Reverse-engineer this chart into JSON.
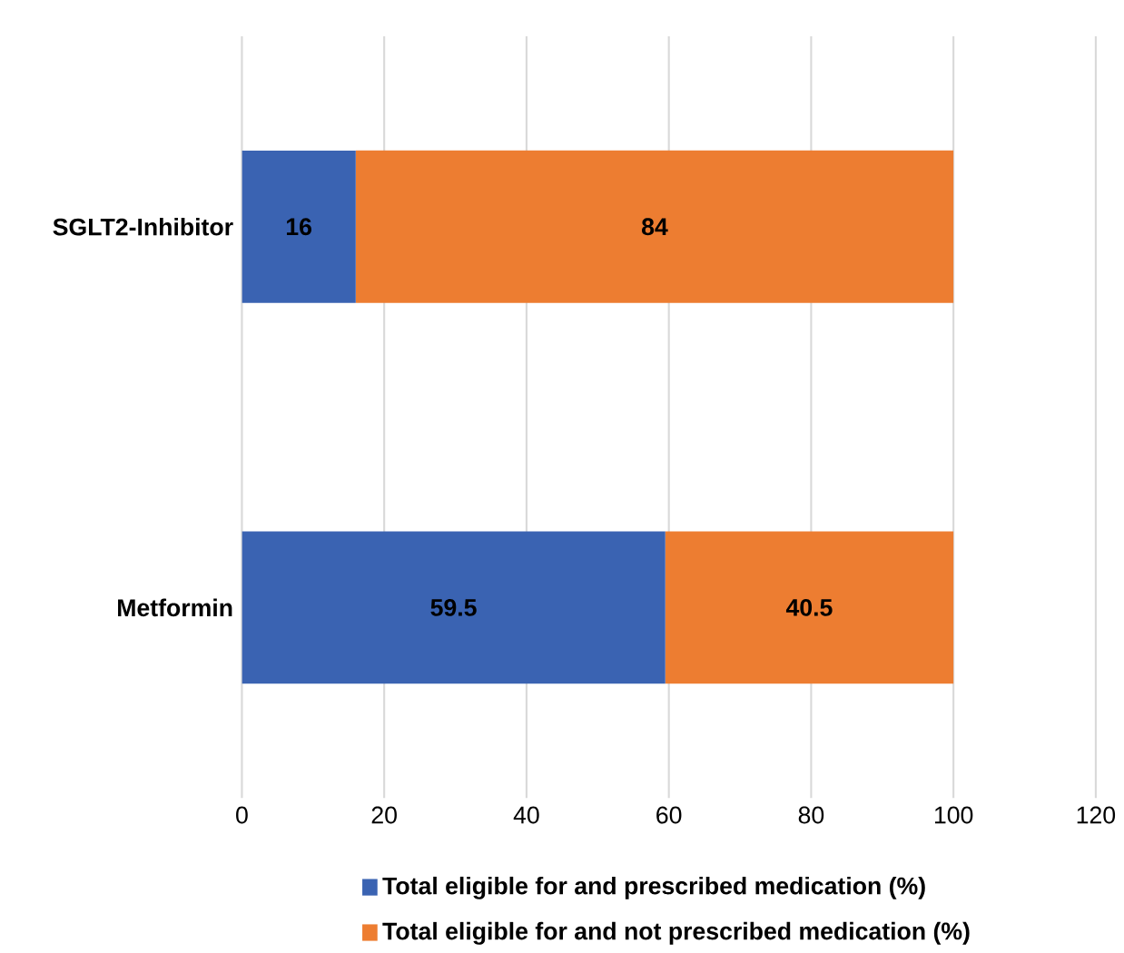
{
  "chart_data": {
    "type": "bar",
    "orientation": "horizontal",
    "stacked": true,
    "categories": [
      "SGLT2-Inhibitor",
      "Metformin"
    ],
    "series": [
      {
        "name": "Total eligible for and prescribed medication (%)",
        "color": "#3a63b2",
        "values": [
          16,
          59.5
        ]
      },
      {
        "name": "Total eligible for and not prescribed medication (%)",
        "color": "#ed7d31",
        "values": [
          84,
          40.5
        ]
      }
    ],
    "xlim": [
      0,
      120
    ],
    "xticks": [
      0,
      20,
      40,
      60,
      80,
      100,
      120
    ],
    "grid": "x",
    "legend": "bottom",
    "data_labels": true
  }
}
